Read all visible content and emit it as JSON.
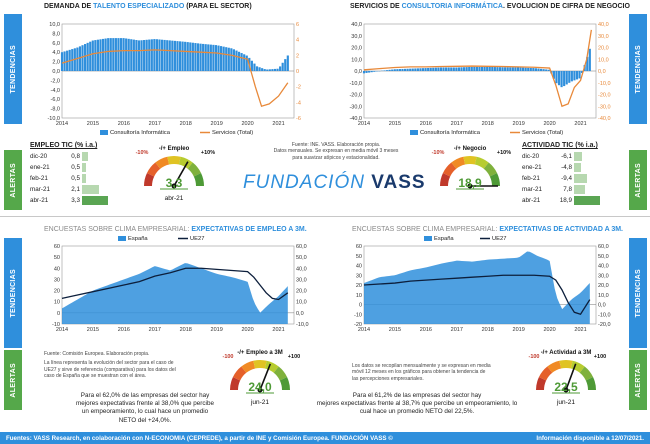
{
  "side_labels": {
    "tendencias": "TENDENCIAS",
    "alertas": "ALERTAS"
  },
  "panels": {
    "top_left": {
      "title_pre": "DEMANDA DE ",
      "title_hl": "TALENTO ESPECIALIZADO",
      "title_post": " (PARA EL SECTOR)"
    },
    "top_right": {
      "title_pre": "SERVICIOS DE ",
      "title_hl": "CONSULTORIA INFORMÁTICA",
      "title_post": ". EVOLUCION DE CIFRA DE NEGOCIO"
    },
    "bottom_left": {
      "title_pre": "ENCUESTAS SOBRE CLIMA EMPRESARIAL: ",
      "title_hl": "EXPECTATIVAS DE EMPLEO A 3M."
    },
    "bottom_right": {
      "title_pre": "ENCUESTAS SOBRE CLIMA EMPRESARIAL: ",
      "title_hl": "EXPECTATIVAS DE ACTIVIDAD A 3M."
    }
  },
  "notes": {
    "center_source": "Fuente: INE. VASS. Elaboración propia.",
    "center_desc_1": "Datos mensuales. Se expresan en media móvil 3 meses",
    "center_desc_2": "para suavizar atípicos y estacionalidad.",
    "bl_source": "Fuente: Comisión Europea. Elaboración propia.",
    "bl_desc_1": "La línea representa la evolución del sector para el caso de",
    "bl_desc_2": "UE27 y sirve de referencia (comparativa) para los datos del",
    "bl_desc_3": "caso de España que se muestran con el área.",
    "br_desc_1": "Los datos se recopilan mensualmente y se expresan en media",
    "br_desc_2": "móvil 12 meses  en los gráficos para obtener la tendencia de",
    "br_desc_3": "las percepciones empresariales.",
    "bl_para_1": "Para el 62,0% de las empresas del sector hay",
    "bl_para_2": "mejores expectativas frente al 38,0% que percibe",
    "bl_para_3": "un empeoramiento, lo cual hace un promedio",
    "bl_para_4": "NETO del +24,0%.",
    "br_para_1": "Para el 61,2% de las empresas del sector hay",
    "br_para_2": "mejores expectativas frente al 38,7% que percibe un empeoramiento, lo",
    "br_para_3": "cual hace un promedio NETO del 22,5%."
  },
  "logo": {
    "part1": "FUNDACIÓN ",
    "part2": "VASS"
  },
  "tables": {
    "empleo": {
      "header": "EMPLEO TIC (% i.a.)",
      "rows": [
        {
          "label": "dic-20",
          "value": "0,8",
          "num": 0.8
        },
        {
          "label": "ene-21",
          "value": "0,5",
          "num": 0.5
        },
        {
          "label": "feb-21",
          "value": "0,5",
          "num": 0.5
        },
        {
          "label": "mar-21",
          "value": "2,1",
          "num": 2.1
        },
        {
          "label": "abr-21",
          "value": "3,3",
          "num": 3.3
        }
      ]
    },
    "actividad": {
      "header": "ACTIVIDAD TIC (% i.a.)",
      "rows": [
        {
          "label": "dic-20",
          "value": "-6,1",
          "num": -6.1
        },
        {
          "label": "ene-21",
          "value": "-4,8",
          "num": -4.8
        },
        {
          "label": "feb-21",
          "value": "-9,4",
          "num": -9.4
        },
        {
          "label": "mar-21",
          "value": "7,8",
          "num": 7.8
        },
        {
          "label": "abr-21",
          "value": "18,9",
          "num": 18.9
        }
      ]
    }
  },
  "gauges": {
    "empleo": {
      "title": "-/+ Empleo",
      "min_label": "-10%",
      "max_label": "+10%",
      "value": "3,3",
      "num": 3.3,
      "min": -10,
      "max": 10,
      "date": "abr-21"
    },
    "negocio": {
      "title": "-/+ Negocio",
      "min_label": "-10%",
      "max_label": "+10%",
      "value": "18,9",
      "num": 18.9,
      "min": -10,
      "max": 10,
      "date": ""
    },
    "empleo3m": {
      "title": "-/+ Empleo a 3M",
      "min_label": "-100",
      "max_label": "+100",
      "value": "24,0",
      "num": 24.0,
      "min": -100,
      "max": 100,
      "date": "jun-21"
    },
    "actividad3m": {
      "title": "-/+ Actividad a 3M",
      "min_label": "-100",
      "max_label": "+100",
      "value": "22,5",
      "num": 22.5,
      "min": -100,
      "max": 100,
      "date": "jun-21"
    }
  },
  "footer": {
    "left": "Fuentes: VASS Research, en colaboración con N-ECONOMIA (CEPREDE), a partir de INE y Comisión Europea. FUNDACIÓN VASS ©",
    "right": "Información disponible a 12/07/2021."
  },
  "colors": {
    "blue": "#2f8fdc",
    "orange": "#e8893a",
    "green": "#55a84a",
    "navy": "#0d1f3c"
  },
  "chart_data": [
    {
      "type": "bar",
      "title": "DEMANDA DE TALENTO ESPECIALIZADO (PARA EL SECTOR)",
      "x_labels": [
        "2014",
        "2015",
        "2016",
        "2017",
        "2018",
        "2019",
        "2020",
        "2021"
      ],
      "ylim_left": [
        -10,
        10
      ],
      "left_ticks": [
        "10,0",
        "8,0",
        "6,0",
        "4,0",
        "2,0",
        "0,0",
        "-2,0",
        "-4,0",
        "-6,0",
        "-8,0",
        "-10,0"
      ],
      "ylim_right": [
        -6,
        6
      ],
      "right_ticks": [
        "6",
        "4",
        "2",
        "0",
        "-2",
        "-4",
        "-6"
      ],
      "legend": [
        "Consultoría Informática",
        "Servicios (Total)"
      ],
      "series": [
        {
          "name": "Consultoría Informática",
          "kind": "bar",
          "axis": "left",
          "x": [
            2014.0,
            2014.5,
            2015.0,
            2015.5,
            2016.0,
            2016.5,
            2017.0,
            2017.5,
            2018.0,
            2018.5,
            2019.0,
            2019.5,
            2020.0,
            2020.3,
            2020.6,
            2021.0,
            2021.3
          ],
          "values": [
            4.0,
            5.0,
            6.5,
            7.0,
            7.0,
            6.5,
            6.8,
            6.5,
            6.2,
            5.8,
            5.5,
            4.8,
            3.2,
            1.0,
            0.3,
            0.5,
            3.3
          ]
        },
        {
          "name": "Servicios (Total)",
          "kind": "line",
          "axis": "right",
          "x": [
            2014.0,
            2014.5,
            2015.0,
            2015.5,
            2016.0,
            2016.5,
            2017.0,
            2017.5,
            2018.0,
            2018.5,
            2019.0,
            2019.5,
            2020.0,
            2020.25,
            2020.45,
            2020.7,
            2021.0,
            2021.3
          ],
          "values": [
            1.0,
            1.6,
            2.2,
            2.5,
            2.6,
            2.6,
            2.7,
            2.6,
            2.5,
            2.4,
            2.3,
            2.0,
            1.5,
            -2.0,
            -4.5,
            -4.2,
            -3.2,
            -1.5
          ]
        }
      ]
    },
    {
      "type": "bar",
      "title": "SERVICIOS DE CONSULTORIA INFORMÁTICA. EVOLUCION DE CIFRA DE NEGOCIO",
      "x_labels": [
        "2014",
        "2015",
        "2016",
        "2017",
        "2018",
        "2019",
        "2020",
        "2021"
      ],
      "ylim_left": [
        -40,
        40
      ],
      "left_ticks": [
        "40,0",
        "30,0",
        "20,0",
        "10,0",
        "0,0",
        "-10,0",
        "-20,0",
        "-30,0",
        "-40,0"
      ],
      "ylim_right": [
        -40,
        40
      ],
      "right_ticks": [
        "40,0",
        "30,0",
        "20,0",
        "10,0",
        "0,0",
        "-10,0",
        "-20,0",
        "-30,0",
        "-40,0"
      ],
      "legend": [
        "Consultoría Informática",
        "Servicios (Total)"
      ],
      "series": [
        {
          "name": "Consultoría Informática",
          "kind": "bar",
          "axis": "left",
          "x": [
            2014.0,
            2014.5,
            2015.0,
            2015.5,
            2016.0,
            2016.5,
            2017.0,
            2017.5,
            2018.0,
            2018.5,
            2019.0,
            2019.5,
            2020.0,
            2020.2,
            2020.4,
            2020.7,
            2021.0,
            2021.3
          ],
          "values": [
            -2.0,
            0.0,
            1.5,
            2.0,
            2.5,
            3.0,
            3.0,
            3.5,
            3.5,
            3.2,
            3.0,
            2.5,
            1.0,
            -10.0,
            -14.0,
            -9.0,
            -6.0,
            18.9
          ]
        },
        {
          "name": "Servicios (Total)",
          "kind": "line",
          "axis": "right",
          "x": [
            2014.0,
            2014.5,
            2015.0,
            2015.5,
            2016.0,
            2016.5,
            2017.0,
            2017.5,
            2018.0,
            2018.5,
            2019.0,
            2019.5,
            2020.0,
            2020.2,
            2020.4,
            2020.6,
            2020.8,
            2021.0,
            2021.2,
            2021.35
          ],
          "values": [
            1.0,
            2.0,
            3.0,
            3.5,
            3.5,
            3.8,
            4.0,
            4.2,
            4.0,
            3.8,
            3.5,
            3.2,
            2.5,
            -12.0,
            -30.0,
            -28.0,
            -14.0,
            -8.0,
            10.0,
            35.0
          ]
        }
      ]
    },
    {
      "type": "area",
      "title": "EXPECTATIVAS DE EMPLEO A 3M.",
      "x_labels": [
        "2014",
        "2015",
        "2016",
        "2017",
        "2018",
        "2019",
        "2020",
        "2021"
      ],
      "ylim_left": [
        -10,
        60
      ],
      "left_ticks": [
        "60",
        "50",
        "40",
        "30",
        "20",
        "10",
        "0",
        "-10"
      ],
      "ylim_right": [
        -10,
        60
      ],
      "right_ticks": [
        "60,0",
        "50,0",
        "40,0",
        "30,0",
        "20,0",
        "10,0",
        "0,0",
        "-10,0"
      ],
      "legend": [
        "España",
        "UE27"
      ],
      "series": [
        {
          "name": "España",
          "kind": "area",
          "axis": "left",
          "x": [
            2014.0,
            2014.5,
            2015.0,
            2015.5,
            2016.0,
            2016.5,
            2017.0,
            2017.5,
            2018.0,
            2018.5,
            2019.0,
            2019.5,
            2020.0,
            2020.2,
            2020.4,
            2020.7,
            2021.0,
            2021.3
          ],
          "values": [
            4,
            12,
            20,
            25,
            30,
            35,
            42,
            38,
            45,
            40,
            35,
            32,
            28,
            10,
            0,
            8,
            15,
            24
          ]
        },
        {
          "name": "UE27",
          "kind": "line",
          "axis": "right",
          "x": [
            2014.0,
            2014.5,
            2015.0,
            2015.5,
            2016.0,
            2016.5,
            2017.0,
            2017.5,
            2018.0,
            2018.5,
            2019.0,
            2019.5,
            2020.0,
            2020.2,
            2020.4,
            2020.6,
            2020.8,
            2021.0,
            2021.3
          ],
          "values": [
            13,
            16,
            19,
            22,
            25,
            28,
            33,
            36,
            40,
            40,
            39,
            38,
            37,
            32,
            25,
            18,
            13,
            12,
            18
          ]
        }
      ]
    },
    {
      "type": "area",
      "title": "EXPECTATIVAS DE ACTIVIDAD A 3M.",
      "x_labels": [
        "2014",
        "2015",
        "2016",
        "2017",
        "2018",
        "2019",
        "2020",
        "2021"
      ],
      "ylim_left": [
        -20,
        60
      ],
      "left_ticks": [
        "60",
        "50",
        "40",
        "30",
        "20",
        "10",
        "0",
        "-10",
        "-20"
      ],
      "ylim_right": [
        -20,
        60
      ],
      "right_ticks": [
        "60,0",
        "50,0",
        "40,0",
        "30,0",
        "20,0",
        "10,0",
        "0,0",
        "-10,0",
        "-20,0"
      ],
      "legend": [
        "España",
        "UE27"
      ],
      "series": [
        {
          "name": "España",
          "kind": "area",
          "axis": "left",
          "x": [
            2014.0,
            2014.5,
            2015.0,
            2015.5,
            2016.0,
            2016.5,
            2017.0,
            2017.5,
            2018.0,
            2018.5,
            2019.0,
            2019.3,
            2019.6,
            2020.0,
            2020.2,
            2020.4,
            2020.7,
            2021.0,
            2021.3
          ],
          "values": [
            22,
            28,
            30,
            35,
            38,
            42,
            45,
            44,
            46,
            47,
            48,
            55,
            50,
            45,
            10,
            -5,
            5,
            12,
            22
          ]
        },
        {
          "name": "UE27",
          "kind": "line",
          "axis": "right",
          "x": [
            2014.0,
            2014.5,
            2015.0,
            2015.5,
            2016.0,
            2016.5,
            2017.0,
            2017.5,
            2018.0,
            2018.5,
            2019.0,
            2019.5,
            2020.0,
            2020.2,
            2020.4,
            2020.6,
            2020.8,
            2021.0,
            2021.3
          ],
          "values": [
            20,
            21,
            22,
            24,
            25,
            26,
            27,
            28,
            29,
            30,
            30,
            30,
            29,
            25,
            15,
            2,
            -8,
            -10,
            5
          ]
        }
      ]
    }
  ]
}
